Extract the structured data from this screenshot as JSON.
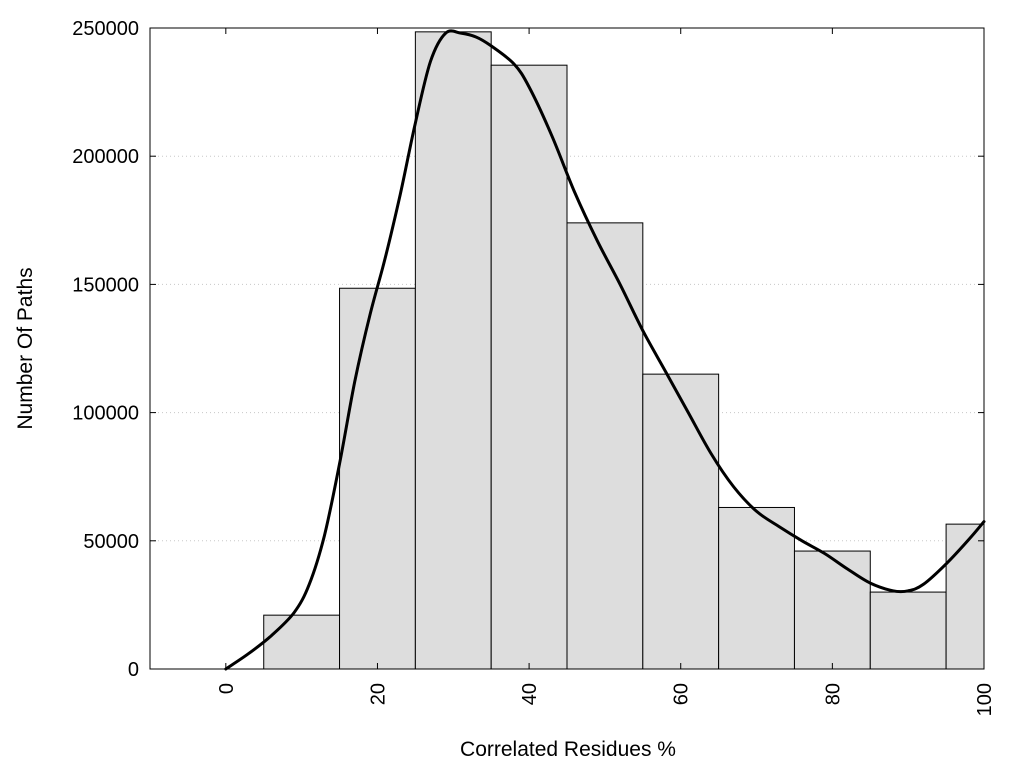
{
  "chart_data": {
    "type": "bar",
    "xlabel": "Correlated Residues %",
    "ylabel": "Number Of Paths",
    "xlim": [
      -10,
      100
    ],
    "ylim": [
      0,
      250000
    ],
    "x_ticks": [
      0,
      20,
      40,
      60,
      80,
      100
    ],
    "y_ticks": [
      0,
      50000,
      100000,
      150000,
      200000,
      250000
    ],
    "grid": "horizontal dotted",
    "bar_fill": "#dddddd",
    "bar_edge": "#000000",
    "bars": [
      {
        "x_start": 5,
        "x_end": 15,
        "value": 21000
      },
      {
        "x_start": 15,
        "x_end": 25,
        "value": 148500
      },
      {
        "x_start": 25,
        "x_end": 35,
        "value": 248500
      },
      {
        "x_start": 35,
        "x_end": 45,
        "value": 235500
      },
      {
        "x_start": 45,
        "x_end": 55,
        "value": 174000
      },
      {
        "x_start": 55,
        "x_end": 65,
        "value": 115000
      },
      {
        "x_start": 65,
        "x_end": 75,
        "value": 63000
      },
      {
        "x_start": 75,
        "x_end": 85,
        "value": 46000
      },
      {
        "x_start": 85,
        "x_end": 95,
        "value": 30000
      },
      {
        "x_start": 95,
        "x_end": 100,
        "value": 56500
      }
    ],
    "curve": {
      "color": "#000000",
      "points": [
        [
          0,
          0
        ],
        [
          3,
          6000
        ],
        [
          6,
          13000
        ],
        [
          9,
          22000
        ],
        [
          11,
          33000
        ],
        [
          13,
          52000
        ],
        [
          15,
          80000
        ],
        [
          17,
          112000
        ],
        [
          19,
          138000
        ],
        [
          21,
          160000
        ],
        [
          23,
          185000
        ],
        [
          25,
          213000
        ],
        [
          27,
          237000
        ],
        [
          29,
          248000
        ],
        [
          31,
          248000
        ],
        [
          33,
          246500
        ],
        [
          35,
          243000
        ],
        [
          38,
          236000
        ],
        [
          40,
          227000
        ],
        [
          43,
          208000
        ],
        [
          46,
          186000
        ],
        [
          49,
          167000
        ],
        [
          52,
          150000
        ],
        [
          55,
          132000
        ],
        [
          58,
          116000
        ],
        [
          61,
          100000
        ],
        [
          64,
          84000
        ],
        [
          67,
          71000
        ],
        [
          70,
          61500
        ],
        [
          73,
          55500
        ],
        [
          76,
          50000
        ],
        [
          79,
          45000
        ],
        [
          82,
          39000
        ],
        [
          85,
          33500
        ],
        [
          88,
          30500
        ],
        [
          90,
          30500
        ],
        [
          92,
          33000
        ],
        [
          95,
          41000
        ],
        [
          98,
          50500
        ],
        [
          100,
          57500
        ]
      ]
    }
  }
}
